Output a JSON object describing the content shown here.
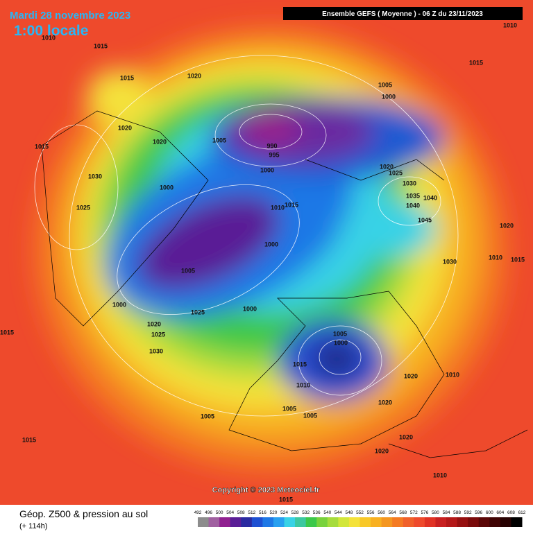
{
  "header": {
    "date": "Mardi 28 novembre 2023",
    "time": "1:00 locale",
    "run": "Ensemble GEFS  ( Moyenne )  -  06 Z du 23/11/2023"
  },
  "map": {
    "isobar_labels": [
      1010,
      1015,
      1015,
      1020,
      1020,
      1015,
      1020,
      1005,
      1030,
      1000,
      1025,
      990,
      995,
      1000,
      1005,
      1000,
      1020,
      1025,
      1030,
      1035,
      1040,
      1040,
      1045,
      1010,
      1015,
      1000,
      1005,
      1000,
      1000,
      1025,
      1020,
      1025,
      1030,
      1005,
      1000,
      1015,
      1010,
      1020,
      1010,
      1020,
      1005,
      1005,
      1005,
      1015,
      1020,
      1020,
      1010,
      1015,
      1010,
      1015,
      1020,
      1030,
      1010,
      1015,
      1015
    ]
  },
  "footer": {
    "copyright": "Copyright © 2023 Meteociel.fr",
    "field": "Géop. Z500 & pression au sol",
    "lead": "(+ 114h)",
    "scale": [
      492,
      496,
      500,
      504,
      508,
      512,
      516,
      520,
      524,
      528,
      532,
      536,
      540,
      544,
      548,
      552,
      556,
      560,
      564,
      568,
      572,
      576,
      580,
      584,
      588,
      592,
      596,
      600,
      604,
      608,
      612
    ]
  }
}
